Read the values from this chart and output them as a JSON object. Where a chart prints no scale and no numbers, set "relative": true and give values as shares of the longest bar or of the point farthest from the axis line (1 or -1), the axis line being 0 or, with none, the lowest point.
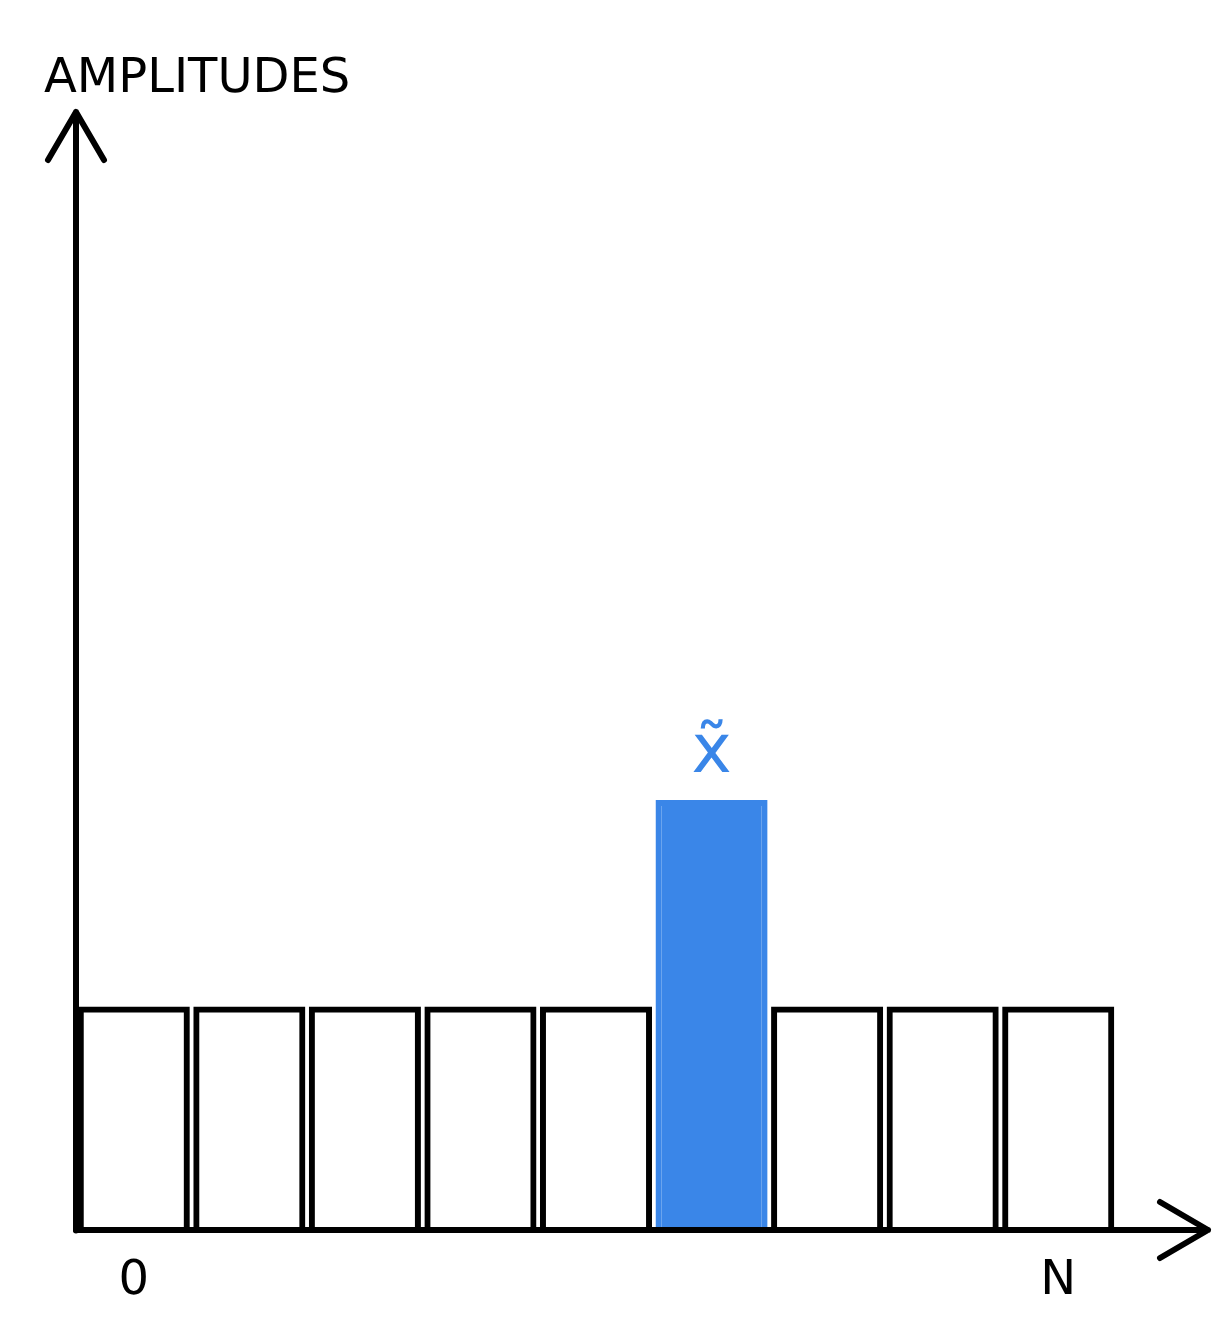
{
  "chart_data": {
    "type": "bar",
    "relative": true,
    "categories": [
      "0",
      null,
      null,
      null,
      null,
      null,
      null,
      null,
      "N"
    ],
    "values": [
      0.52,
      0.52,
      0.52,
      0.52,
      0.52,
      1,
      0.52,
      0.52,
      0.52
    ],
    "colors": [
      "#000000",
      "#000000",
      "#000000",
      "#000000",
      "#000000",
      "#3a86e8",
      "#000000",
      "#000000",
      "#000000"
    ],
    "annotations": [
      "AMPLITUDES",
      "x̃"
    ],
    "legend": false,
    "grid": false
  }
}
